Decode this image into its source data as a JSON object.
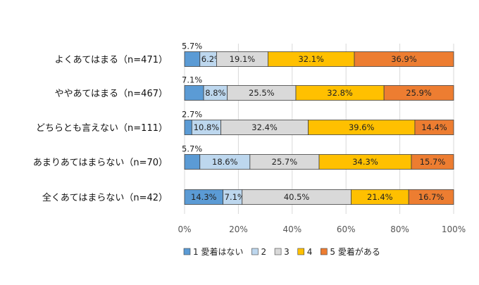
{
  "chart_data": {
    "type": "bar",
    "orientation": "horizontal",
    "stacked": true,
    "percent": true,
    "categories": [
      "よくあてはまる（n=471）",
      "ややあてはまる（n=467）",
      "どちらとも言えない（n=111）",
      "あまりあてはまらない（n=70）",
      "全くあてはまらない（n=42）"
    ],
    "series": [
      {
        "name": "1 愛着はない",
        "color": "#5b9bd5",
        "values": [
          5.7,
          7.1,
          2.7,
          5.7,
          14.3
        ]
      },
      {
        "name": "2",
        "color": "#bdd7ee",
        "values": [
          6.2,
          8.8,
          10.8,
          18.6,
          7.1
        ]
      },
      {
        "name": "3",
        "color": "#d9d9d9",
        "values": [
          19.1,
          25.5,
          32.4,
          25.7,
          40.5
        ]
      },
      {
        "name": "4",
        "color": "#ffc000",
        "values": [
          32.1,
          32.8,
          39.6,
          34.3,
          21.4
        ]
      },
      {
        "name": "5 愛着がある",
        "color": "#ed7d31",
        "values": [
          36.9,
          25.9,
          14.4,
          15.7,
          16.7
        ]
      }
    ],
    "value_labels": [
      [
        "5.7%",
        "6.2%",
        "19.1%",
        "32.1%",
        "36.9%"
      ],
      [
        "7.1%",
        "8.8%",
        "25.5%",
        "32.8%",
        "25.9%"
      ],
      [
        "2.7%",
        "10.8%",
        "32.4%",
        "39.6%",
        "14.4%"
      ],
      [
        "5.7%",
        "18.6%",
        "25.7%",
        "34.3%",
        "15.7%"
      ],
      [
        "14.3%",
        "7.1%",
        "40.5%",
        "21.4%",
        "16.7%"
      ]
    ],
    "xlim": [
      0,
      100
    ],
    "xticks": [
      "0%",
      "20%",
      "40%",
      "60%",
      "80%",
      "100%"
    ],
    "grid": true,
    "legend_position": "bottom"
  }
}
